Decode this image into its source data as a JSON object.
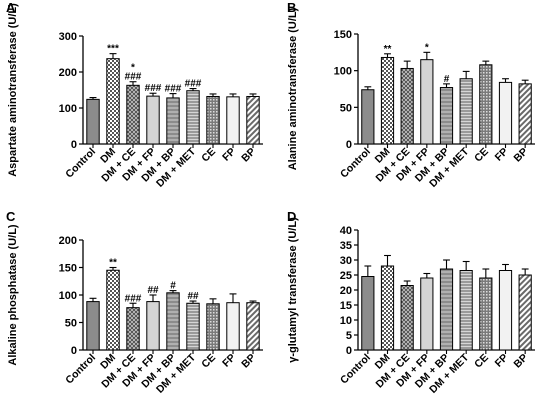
{
  "chart_data": [
    {
      "panel": "A",
      "type": "bar",
      "ylabel": "Aspartate aminotransferase (U/L)",
      "categories": [
        "Control",
        "DM",
        "DM + CE",
        "DM + FP",
        "DM + BP",
        "DM + MET",
        "CE",
        "FP",
        "BP"
      ],
      "values": [
        124,
        237,
        163,
        133,
        128,
        148,
        132,
        131,
        132
      ],
      "errors": [
        5,
        14,
        10,
        8,
        12,
        6,
        7,
        8,
        7
      ],
      "annotations": [
        "",
        "***",
        "*\n###",
        "###",
        "###",
        "###",
        "",
        "",
        ""
      ],
      "ylim": [
        0,
        300
      ],
      "yticks": [
        0,
        100,
        200,
        300
      ]
    },
    {
      "panel": "B",
      "type": "bar",
      "ylabel": "Alanine aminotransferase (U/L)",
      "categories": [
        "Control",
        "DM",
        "DM + CE",
        "DM + FP",
        "DM + BP",
        "DM + MET",
        "CE",
        "FP",
        "BP"
      ],
      "values": [
        74,
        118,
        103,
        115,
        77,
        89,
        108,
        84,
        82
      ],
      "errors": [
        4,
        5,
        10,
        10,
        5,
        10,
        5,
        5,
        5
      ],
      "annotations": [
        "",
        "**",
        "",
        "*",
        "#",
        "",
        "",
        "",
        ""
      ],
      "ylim": [
        0,
        150
      ],
      "yticks": [
        0,
        50,
        100,
        150
      ]
    },
    {
      "panel": "C",
      "type": "bar",
      "ylabel": "Alkaline phosphatase (U/L)",
      "categories": [
        "Control",
        "DM",
        "DM + CE",
        "DM + FP",
        "DM + BP",
        "DM + MET",
        "CE",
        "FP",
        "BP"
      ],
      "values": [
        88,
        145,
        77,
        88,
        104,
        85,
        84,
        86,
        86
      ],
      "errors": [
        6,
        5,
        8,
        12,
        4,
        4,
        9,
        16,
        3
      ],
      "annotations": [
        "",
        "**",
        "###",
        "##",
        "#",
        "##",
        "",
        "",
        ""
      ],
      "ylim": [
        0,
        200
      ],
      "yticks": [
        0,
        50,
        100,
        150,
        200
      ]
    },
    {
      "panel": "D",
      "type": "bar",
      "ylabel": "γ-glutamyl transferase (U/L)",
      "categories": [
        "Control",
        "DM",
        "DM + CE",
        "DM + FP",
        "DM + BP",
        "DM + MET",
        "CE",
        "FP",
        "BP"
      ],
      "values": [
        24.5,
        28,
        21.5,
        24,
        27,
        26.5,
        24,
        26.5,
        25
      ],
      "errors": [
        3.5,
        3.5,
        1.5,
        1.5,
        3,
        3,
        3,
        2,
        2
      ],
      "annotations": [
        "",
        "",
        "",
        "",
        "",
        "",
        "",
        "",
        ""
      ],
      "ylim": [
        0,
        40
      ],
      "yticks": [
        0,
        5,
        10,
        15,
        20,
        25,
        30,
        35,
        40
      ]
    }
  ]
}
